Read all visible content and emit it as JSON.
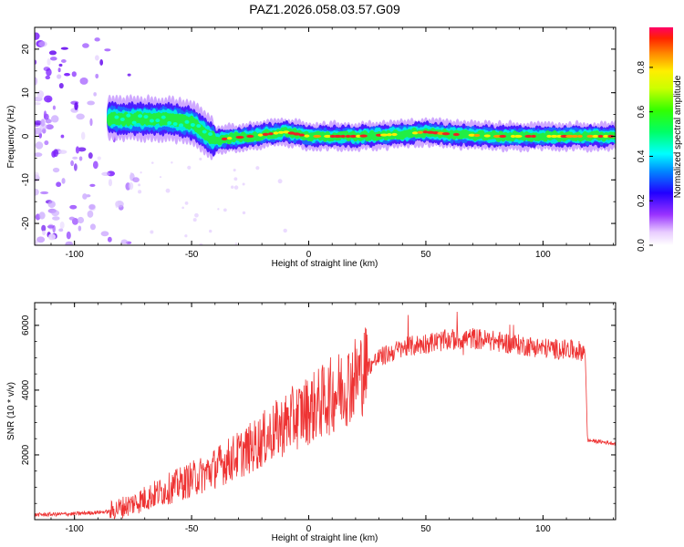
{
  "title": "PAZ1.2026.058.03.57.G09",
  "colorbar": {
    "label": "Normalized spectral amplitude",
    "ticks": [
      "0.0",
      "0.2",
      "0.4",
      "0.6",
      "0.8"
    ],
    "tick_values": [
      0.0,
      0.2,
      0.4,
      0.6,
      0.8
    ],
    "range": [
      0,
      0.98
    ]
  },
  "chart_data": [
    {
      "type": "heatmap",
      "name": "spectrogram",
      "title": "PAZ1.2026.058.03.57.G09",
      "xlabel": "Height of straight line (km)",
      "ylabel": "Frequency (Hz)",
      "xlim": [
        -117,
        131
      ],
      "ylim": [
        -25,
        25
      ],
      "xticks": [
        -100,
        -50,
        0,
        50,
        100
      ],
      "xtick_labels": [
        "-100",
        "-50",
        "0",
        "50",
        "100"
      ],
      "yticks": [
        -20,
        -10,
        0,
        10,
        20
      ],
      "ytick_labels": [
        "-20",
        "-10",
        "0",
        "10",
        "20"
      ],
      "ridge": {
        "x": [
          -85,
          -70,
          -60,
          -50,
          -45,
          -40,
          -35,
          -25,
          -10,
          0,
          20,
          40,
          50,
          60,
          80,
          100,
          120,
          131
        ],
        "y": [
          4,
          4,
          4,
          3,
          1,
          -1,
          -0.5,
          0,
          1,
          0,
          0,
          0.5,
          1,
          0.5,
          0,
          0,
          0,
          0
        ]
      },
      "scatter_region_x": [
        -117,
        -80
      ]
    },
    {
      "type": "line",
      "name": "snr",
      "xlabel": "Height of straight line (km)",
      "ylabel": "SNR (10 * v/v)",
      "xlim": [
        -117,
        131
      ],
      "ylim": [
        0,
        6700
      ],
      "xticks": [
        -100,
        -50,
        0,
        50,
        100
      ],
      "xtick_labels": [
        "-100",
        "-50",
        "0",
        "50",
        "100"
      ],
      "yticks": [
        2000,
        4000,
        6000
      ],
      "ytick_labels": [
        "2000",
        "4000",
        "6000"
      ],
      "color": "#ee3333",
      "envelope": {
        "x": [
          -117,
          -100,
          -85,
          -75,
          -65,
          -55,
          -45,
          -35,
          -25,
          -15,
          -5,
          5,
          15,
          25,
          30,
          40,
          50,
          60,
          70,
          80,
          90,
          100,
          110,
          118,
          119,
          125,
          131
        ],
        "y": [
          150,
          180,
          250,
          500,
          800,
          1100,
          1400,
          1800,
          2200,
          2700,
          3200,
          3600,
          4100,
          4700,
          5000,
          5300,
          5450,
          5550,
          5600,
          5500,
          5400,
          5300,
          5250,
          5200,
          2450,
          2400,
          2350
        ]
      }
    }
  ]
}
